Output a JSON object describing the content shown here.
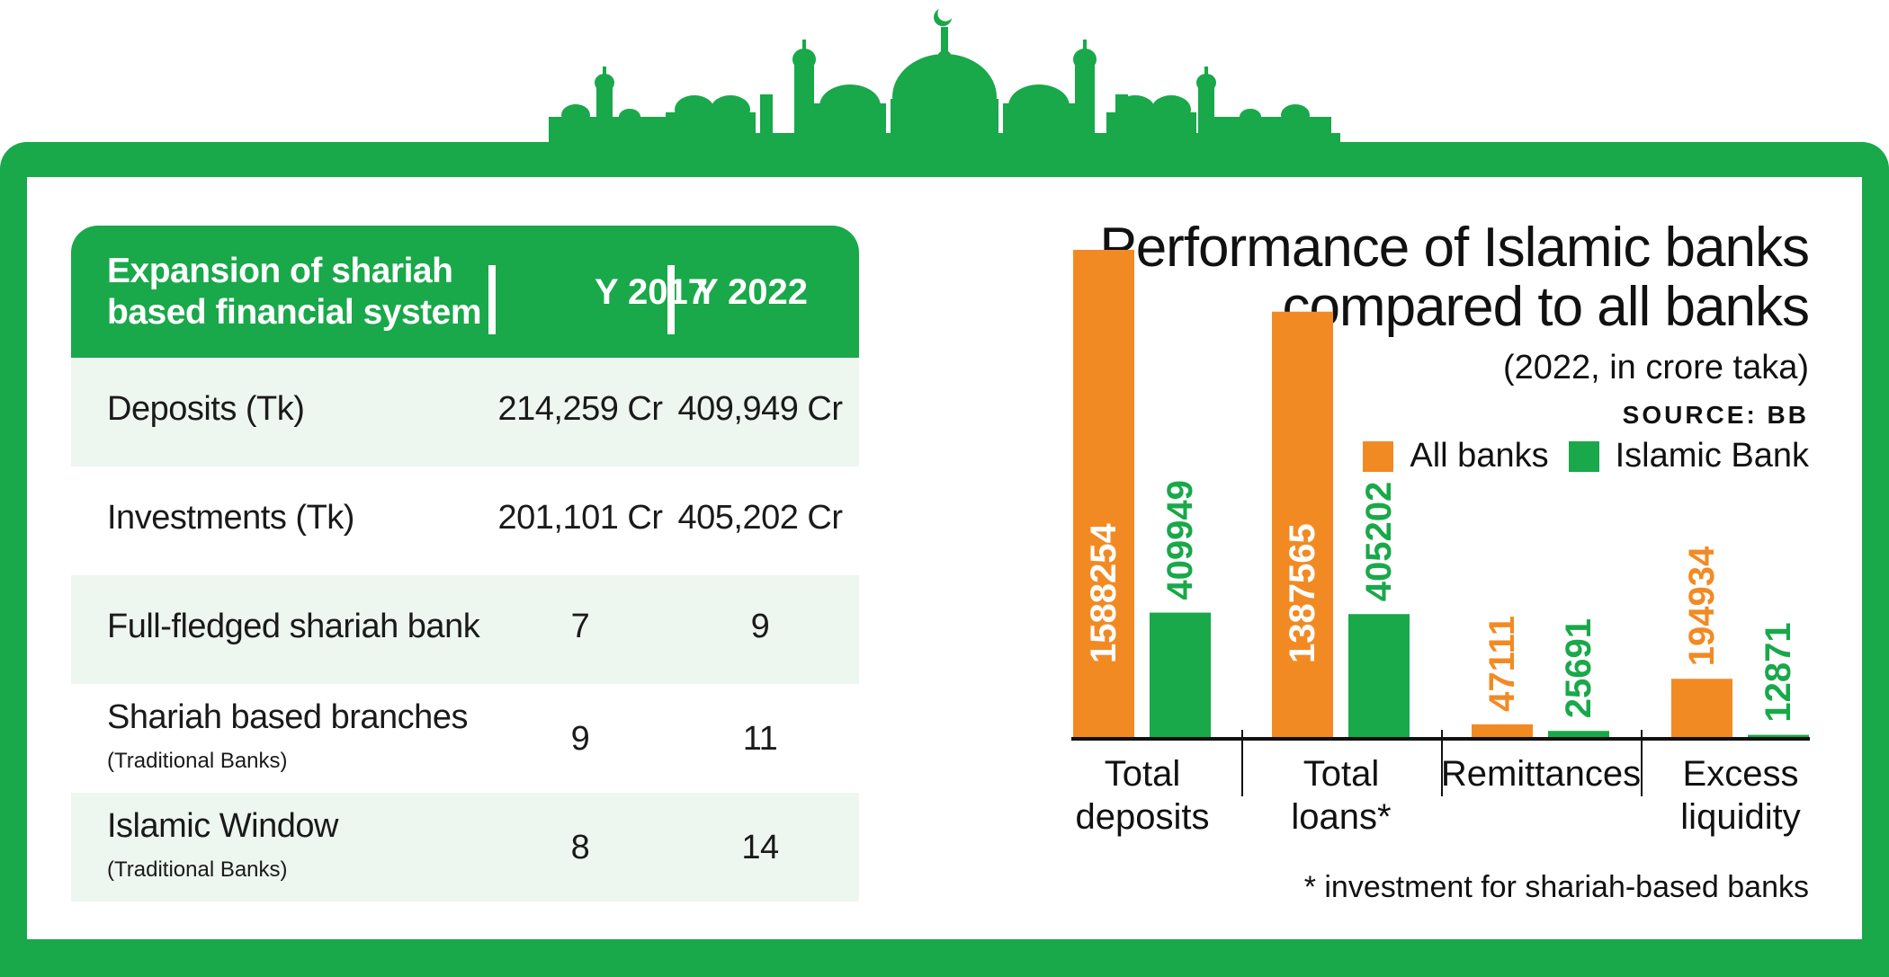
{
  "table": {
    "header": {
      "title": "Expansion of shariah based financial system",
      "col1": "Y 2017",
      "col2": "Y 2022"
    },
    "rows": [
      {
        "label": "Deposits (Tk)",
        "sub": "",
        "v2017": "214,259 Cr",
        "v2022": "409,949 Cr"
      },
      {
        "label": "Investments (Tk)",
        "sub": "",
        "v2017": "201,101 Cr",
        "v2022": "405,202 Cr"
      },
      {
        "label": "Full-fledged shariah bank",
        "sub": "",
        "v2017": "7",
        "v2022": "9"
      },
      {
        "label": "Shariah based branches",
        "sub": "(Traditional Banks)",
        "v2017": "9",
        "v2022": "11"
      },
      {
        "label": "Islamic Window",
        "sub": "(Traditional Banks)",
        "v2017": "8",
        "v2022": "14"
      }
    ]
  },
  "chart_data": {
    "type": "bar",
    "title": "Performance of Islamic banks compared to all banks",
    "subtitle": "(2022, in crore taka)",
    "source": "SOURCE: BB",
    "categories": [
      "Total deposits",
      "Total loans*",
      "Remittances",
      "Excess liquidity"
    ],
    "series": [
      {
        "name": "All banks",
        "color": "#f28a24",
        "values": [
          1588254,
          1387565,
          47111,
          194934
        ]
      },
      {
        "name": "Islamic Bank",
        "color": "#19a84a",
        "values": [
          409949,
          405202,
          25691,
          12871
        ]
      }
    ],
    "ylim": [
      0,
      1588254
    ],
    "legend": "top-right",
    "grid": false,
    "footnote": "* investment for shariah-based banks"
  },
  "colors": {
    "green": "#19a84a",
    "orange": "#f28a24"
  }
}
